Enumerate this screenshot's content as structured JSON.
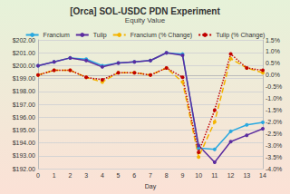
{
  "chart_data": {
    "type": "line",
    "title": "[Orca] SOL-USDC PDN Experiment",
    "subtitle": "Equity Value",
    "x_label": "Day",
    "categories": [
      "0",
      "1",
      "2",
      "3",
      "4",
      "5",
      "6",
      "7",
      "8",
      "9",
      "10",
      "11",
      "12",
      "13",
      "14"
    ],
    "ylim": [
      192,
      202
    ],
    "yticks": [
      {
        "value": 192,
        "label": "$192.00"
      },
      {
        "value": 193,
        "label": "$193.00"
      },
      {
        "value": 194,
        "label": "$194.00"
      },
      {
        "value": 195,
        "label": "$195.00"
      },
      {
        "value": 196,
        "label": "$196.00"
      },
      {
        "value": 197,
        "label": "$197.00"
      },
      {
        "value": 198,
        "label": "$198.00"
      },
      {
        "value": 199,
        "label": "$199.00"
      },
      {
        "value": 200,
        "label": "$200.00"
      },
      {
        "value": 201,
        "label": "$201.00"
      },
      {
        "value": 202,
        "label": "$202.00"
      }
    ],
    "y2lim": [
      -4,
      1.5
    ],
    "y2ticks": [
      {
        "value": -4,
        "label": "-4.0%"
      },
      {
        "value": -3.5,
        "label": "-3.5%"
      },
      {
        "value": -3,
        "label": "-3.0%"
      },
      {
        "value": -2.5,
        "label": "-2.5%"
      },
      {
        "value": -2,
        "label": "-2.0%"
      },
      {
        "value": -1.5,
        "label": "-1.5%"
      },
      {
        "value": -1,
        "label": "-1.0%"
      },
      {
        "value": -0.5,
        "label": "-0.5%"
      },
      {
        "value": 0,
        "label": "0.0%"
      },
      {
        "value": 0.5,
        "label": "0.5%"
      },
      {
        "value": 1,
        "label": "1.0%"
      },
      {
        "value": 1.5,
        "label": "1.5%"
      }
    ],
    "grid": true,
    "legend": "top",
    "series": [
      {
        "name": "Francium",
        "color": "#29a8e0",
        "marker": "circle",
        "line_style": "solid",
        "values": [
          200.0,
          200.3,
          200.6,
          200.5,
          200.0,
          200.2,
          200.3,
          200.4,
          201.0,
          200.9,
          193.6,
          193.5,
          194.9,
          195.4,
          195.6
        ]
      },
      {
        "name": "Tulip",
        "color": "#5b2c9f",
        "marker": "circle",
        "line_style": "solid",
        "values": [
          200.0,
          200.3,
          200.6,
          200.4,
          199.9,
          200.2,
          200.3,
          200.4,
          201.0,
          200.8,
          193.8,
          192.5,
          194.1,
          194.6,
          195.1
        ]
      },
      {
        "name": "Francium (% Change)",
        "color": "#f4b400",
        "marker": "circle",
        "line_style": "dashed",
        "axis": "y2",
        "values": [
          0.0,
          0.2,
          0.2,
          -0.1,
          -0.3,
          0.1,
          0.1,
          0.0,
          0.3,
          -0.3,
          -3.5,
          -2.0,
          0.7,
          0.3,
          0.1
        ]
      },
      {
        "name": "Tulip (% Change)",
        "color": "#c00000",
        "marker": "circle",
        "line_style": "dotted",
        "axis": "y2",
        "values": [
          0.0,
          0.2,
          0.2,
          -0.1,
          -0.2,
          0.1,
          0.1,
          0.0,
          0.3,
          -0.1,
          -3.3,
          -1.5,
          0.9,
          0.3,
          0.2
        ]
      }
    ]
  }
}
